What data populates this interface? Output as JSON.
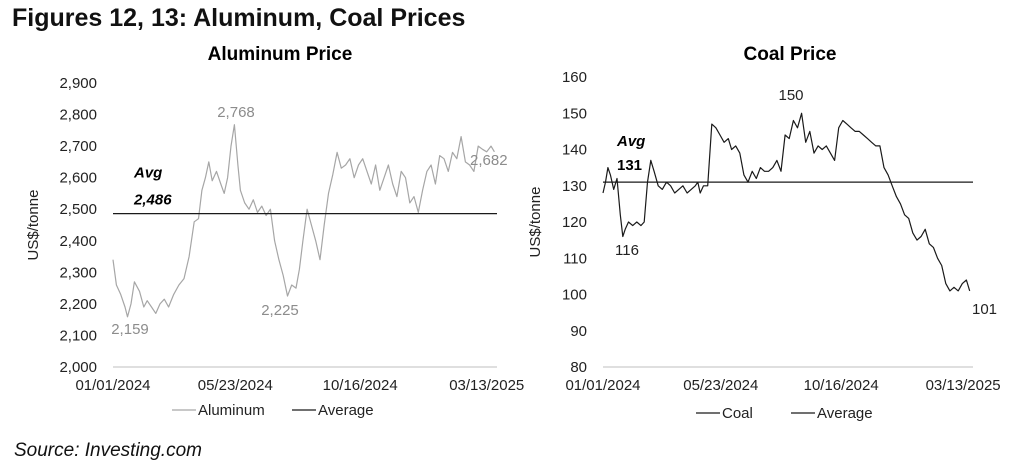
{
  "figure_title": "Figures 12, 13: Aluminum, Coal Prices",
  "source": "Source: Investing.com",
  "colors": {
    "aluminum": "#a6a6a6",
    "coal": "#1a1a1a",
    "average": "#1a1a1a"
  },
  "chart_data": [
    {
      "type": "line",
      "title": "Aluminum Price",
      "ylabel": "US$/tonne",
      "xlabel": "",
      "ylim": [
        2000,
        2900
      ],
      "yticks": [
        2000,
        2100,
        2200,
        2300,
        2400,
        2500,
        2600,
        2700,
        2800,
        2900
      ],
      "ytick_labels": [
        "2,000",
        "2,100",
        "2,200",
        "2,300",
        "2,400",
        "2,500",
        "2,600",
        "2,700",
        "2,800",
        "2,900"
      ],
      "xlim": [
        "2024-01-01",
        "2025-03-25"
      ],
      "xticks": [
        "2024-01-01",
        "2024-05-23",
        "2024-10-16",
        "2025-03-13"
      ],
      "xtick_labels": [
        "01/01/2024",
        "05/23/2024",
        "10/16/2024",
        "03/13/2025"
      ],
      "series": [
        {
          "name": "Aluminum",
          "x": [
            "2024-01-01",
            "2024-01-05",
            "2024-01-10",
            "2024-01-15",
            "2024-01-18",
            "2024-01-22",
            "2024-01-26",
            "2024-02-01",
            "2024-02-06",
            "2024-02-10",
            "2024-02-15",
            "2024-02-20",
            "2024-02-25",
            "2024-03-01",
            "2024-03-06",
            "2024-03-12",
            "2024-03-18",
            "2024-03-24",
            "2024-03-30",
            "2024-04-05",
            "2024-04-10",
            "2024-04-14",
            "2024-04-18",
            "2024-04-22",
            "2024-04-26",
            "2024-05-01",
            "2024-05-06",
            "2024-05-10",
            "2024-05-14",
            "2024-05-18",
            "2024-05-22",
            "2024-05-26",
            "2024-05-29",
            "2024-06-03",
            "2024-06-08",
            "2024-06-13",
            "2024-06-18",
            "2024-06-23",
            "2024-06-28",
            "2024-07-03",
            "2024-07-08",
            "2024-07-13",
            "2024-07-18",
            "2024-07-23",
            "2024-07-28",
            "2024-08-02",
            "2024-08-06",
            "2024-08-10",
            "2024-08-15",
            "2024-08-20",
            "2024-08-25",
            "2024-08-30",
            "2024-09-04",
            "2024-09-09",
            "2024-09-14",
            "2024-09-19",
            "2024-09-24",
            "2024-09-29",
            "2024-10-04",
            "2024-10-09",
            "2024-10-14",
            "2024-10-19",
            "2024-10-24",
            "2024-10-29",
            "2024-11-03",
            "2024-11-08",
            "2024-11-13",
            "2024-11-18",
            "2024-11-23",
            "2024-11-28",
            "2024-12-03",
            "2024-12-08",
            "2024-12-13",
            "2024-12-18",
            "2024-12-23",
            "2024-12-28",
            "2025-01-02",
            "2025-01-07",
            "2025-01-12",
            "2025-01-17",
            "2025-01-22",
            "2025-01-27",
            "2025-02-01",
            "2025-02-06",
            "2025-02-11",
            "2025-02-16",
            "2025-02-21",
            "2025-02-26",
            "2025-03-03",
            "2025-03-08",
            "2025-03-13",
            "2025-03-18",
            "2025-03-22"
          ],
          "values": [
            2340,
            2260,
            2230,
            2190,
            2159,
            2200,
            2270,
            2240,
            2190,
            2210,
            2190,
            2170,
            2200,
            2215,
            2190,
            2230,
            2260,
            2280,
            2350,
            2460,
            2470,
            2560,
            2600,
            2650,
            2590,
            2620,
            2580,
            2550,
            2600,
            2700,
            2768,
            2640,
            2560,
            2520,
            2500,
            2530,
            2490,
            2510,
            2480,
            2500,
            2400,
            2340,
            2290,
            2225,
            2260,
            2250,
            2310,
            2400,
            2500,
            2450,
            2400,
            2340,
            2450,
            2550,
            2610,
            2680,
            2630,
            2640,
            2660,
            2600,
            2640,
            2660,
            2620,
            2580,
            2640,
            2560,
            2600,
            2640,
            2580,
            2540,
            2620,
            2600,
            2520,
            2540,
            2490,
            2560,
            2620,
            2640,
            2580,
            2670,
            2660,
            2620,
            2680,
            2660,
            2730,
            2650,
            2640,
            2620,
            2700,
            2690,
            2682,
            2700,
            2682
          ]
        }
      ],
      "average": {
        "name": "Average",
        "value": 2486,
        "label": "Avg",
        "value_label": "2,486"
      },
      "annotations": [
        {
          "text": "2,768",
          "x": "2024-05-22",
          "y": 2768
        },
        {
          "text": "2,159",
          "x": "2024-01-18",
          "y": 2159
        },
        {
          "text": "2,225",
          "x": "2024-07-23",
          "y": 2225
        },
        {
          "text": "2,682",
          "x": "2025-03-22",
          "y": 2682
        }
      ],
      "legend": {
        "placement": "bottom",
        "entries": [
          "Aluminum",
          "Average"
        ]
      }
    },
    {
      "type": "line",
      "title": "Coal Price",
      "ylabel": "US$/tonne",
      "xlabel": "",
      "ylim": [
        80,
        160
      ],
      "yticks": [
        80,
        90,
        100,
        110,
        120,
        130,
        140,
        150,
        160
      ],
      "ytick_labels": [
        "80",
        "90",
        "100",
        "110",
        "120",
        "130",
        "140",
        "150",
        "160"
      ],
      "xlim": [
        "2024-01-01",
        "2025-03-25"
      ],
      "xticks": [
        "2024-01-01",
        "2024-05-23",
        "2024-10-16",
        "2025-03-13"
      ],
      "xtick_labels": [
        "01/01/2024",
        "05/23/2024",
        "10/16/2024",
        "03/13/2025"
      ],
      "series": [
        {
          "name": "Coal",
          "x": [
            "2024-01-01",
            "2024-01-04",
            "2024-01-07",
            "2024-01-10",
            "2024-01-14",
            "2024-01-18",
            "2024-01-22",
            "2024-01-25",
            "2024-01-28",
            "2024-02-01",
            "2024-02-06",
            "2024-02-11",
            "2024-02-16",
            "2024-02-20",
            "2024-02-24",
            "2024-02-28",
            "2024-03-03",
            "2024-03-08",
            "2024-03-13",
            "2024-03-18",
            "2024-03-23",
            "2024-03-28",
            "2024-04-02",
            "2024-04-07",
            "2024-04-12",
            "2024-04-17",
            "2024-04-22",
            "2024-04-25",
            "2024-04-28",
            "2024-05-02",
            "2024-05-07",
            "2024-05-12",
            "2024-05-17",
            "2024-05-22",
            "2024-05-27",
            "2024-06-01",
            "2024-06-05",
            "2024-06-10",
            "2024-06-15",
            "2024-06-20",
            "2024-06-25",
            "2024-06-30",
            "2024-07-05",
            "2024-07-10",
            "2024-07-15",
            "2024-07-20",
            "2024-07-25",
            "2024-07-30",
            "2024-08-04",
            "2024-08-09",
            "2024-08-14",
            "2024-08-19",
            "2024-08-24",
            "2024-08-29",
            "2024-09-03",
            "2024-09-08",
            "2024-09-13",
            "2024-09-18",
            "2024-09-23",
            "2024-09-28",
            "2024-10-03",
            "2024-10-08",
            "2024-10-13",
            "2024-10-18",
            "2024-10-23",
            "2024-10-28",
            "2024-11-02",
            "2024-11-07",
            "2024-11-12",
            "2024-11-17",
            "2024-11-22",
            "2024-11-27",
            "2024-12-02",
            "2024-12-07",
            "2024-12-12",
            "2024-12-17",
            "2024-12-22",
            "2024-12-27",
            "2025-01-01",
            "2025-01-06",
            "2025-01-11",
            "2025-01-16",
            "2025-01-21",
            "2025-01-26",
            "2025-01-31",
            "2025-02-05",
            "2025-02-10",
            "2025-02-15",
            "2025-02-20",
            "2025-02-25",
            "2025-03-02",
            "2025-03-07",
            "2025-03-12",
            "2025-03-17",
            "2025-03-21"
          ],
          "values": [
            128,
            131,
            135,
            133,
            129,
            132,
            122,
            116,
            118,
            120,
            119,
            120,
            119,
            120,
            131,
            137,
            134,
            130,
            129,
            131,
            130,
            128,
            129,
            130,
            128,
            129,
            130,
            131,
            128,
            130,
            130,
            147,
            146,
            144,
            142,
            143,
            140,
            141,
            139,
            133,
            131,
            134,
            132,
            135,
            134,
            134,
            135,
            137,
            134,
            144,
            143,
            148,
            146,
            150,
            142,
            145,
            139,
            141,
            140,
            141,
            139,
            137,
            146,
            148,
            147,
            146,
            145,
            145,
            144,
            143,
            142,
            141,
            141,
            135,
            133,
            130,
            127,
            125,
            122,
            121,
            117,
            115,
            116,
            118,
            114,
            113,
            110,
            108,
            103,
            101,
            102,
            101,
            103,
            104,
            101
          ]
        }
      ],
      "average": {
        "name": "Average",
        "value": 131,
        "label": "Avg",
        "value_label": "131"
      },
      "annotations": [
        {
          "text": "150",
          "x": "2024-08-29",
          "y": 150
        },
        {
          "text": "116",
          "x": "2024-01-25",
          "y": 116
        },
        {
          "text": "101",
          "x": "2025-03-21",
          "y": 101
        }
      ],
      "legend": {
        "placement": "bottom",
        "entries": [
          "Coal",
          "Average"
        ]
      }
    }
  ]
}
